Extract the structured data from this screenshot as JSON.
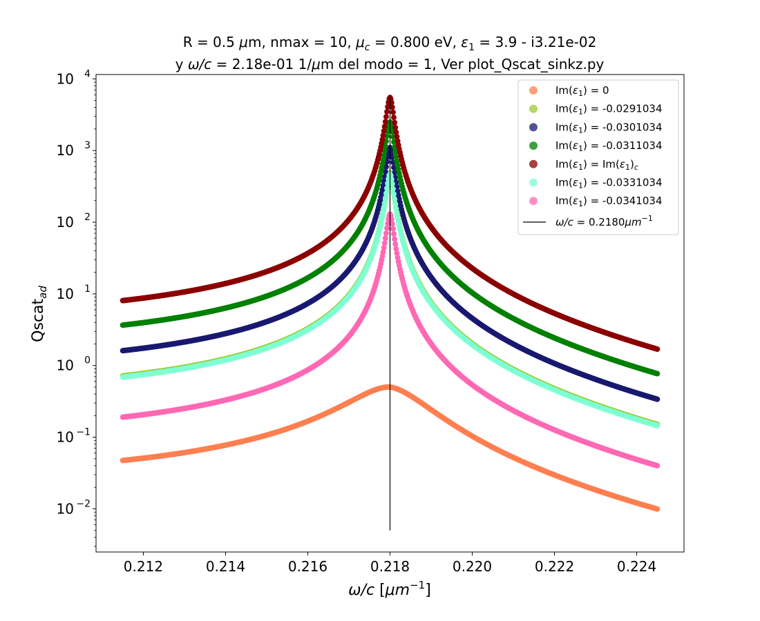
{
  "chart_data": {
    "type": "scatter",
    "title_line1_parts": [
      "R = 0.5 ",
      "μ",
      "m, nmax = 10, ",
      "μ",
      "c",
      " = 0.800 eV, ",
      "ε",
      "1",
      " = 3.9 - i3.21e-02"
    ],
    "title_line2_parts": [
      "y ",
      "ω/c",
      " = 2.18e-01 1/",
      "μ",
      "m del modo = 1, Ver plot_Qscat_sinkz.py"
    ],
    "xlabel_parts": [
      "ω/c",
      " [",
      "μm",
      "−1",
      "]"
    ],
    "ylabel_parts": [
      "Qscat",
      "ad"
    ],
    "xscale": "linear",
    "yscale": "log",
    "xlim": [
      0.21085,
      0.22515
    ],
    "ylim": [
      0.0025,
      11500
    ],
    "x_ticks": [
      0.212,
      0.214,
      0.216,
      0.218,
      0.22,
      0.222,
      0.224
    ],
    "x_tick_labels": [
      "0.212",
      "0.214",
      "0.216",
      "0.218",
      "0.220",
      "0.222",
      "0.224"
    ],
    "y_ticks": [
      0.01,
      0.1,
      1,
      10,
      100,
      1000,
      10000
    ],
    "y_tick_labels": [
      [
        "10",
        "−2"
      ],
      [
        "10",
        "−1"
      ],
      [
        "10",
        "0"
      ],
      [
        "10",
        "1"
      ],
      [
        "10",
        "2"
      ],
      [
        "10",
        "3"
      ],
      [
        "10",
        "4"
      ]
    ],
    "resonance_x": 0.218,
    "vline": {
      "x": 0.218,
      "ymin": 0.005,
      "ymax": 5500,
      "color": "#000000"
    },
    "legend_position": "upper right",
    "series": [
      {
        "name_parts": [
          "Im(",
          "ε",
          "1",
          ") = 0"
        ],
        "color": "#ff7f50",
        "model": {
          "x_range": [
            0.2115,
            0.2245
          ],
          "A": 0.5,
          "g": 0.00111,
          "m": 0.0001,
          "peak_exp": 1.75
        }
      },
      {
        "name_parts": [
          "Im(",
          "ε",
          "1",
          ") = -0.0291034"
        ],
        "color": "#9acd32",
        "model": {
          "x_range": [
            0.2115,
            0.2245
          ],
          "A": 490,
          "g": 0.0001,
          "m": 0.0001,
          "peak_exp": 1.75
        }
      },
      {
        "name_parts": [
          "Im(",
          "ε",
          "1",
          ") = -0.0301034"
        ],
        "color": "#191970",
        "model": {
          "x_range": [
            0.2115,
            0.2245
          ],
          "A": 1100,
          "g": 0.0001,
          "m": 0.0001,
          "peak_exp": 1.75
        }
      },
      {
        "name_parts": [
          "Im(",
          "ε",
          "1",
          ") = -0.0311034"
        ],
        "color": "#008000",
        "model": {
          "x_range": [
            0.2115,
            0.2245
          ],
          "A": 2500,
          "g": 0.0001,
          "m": 0.0001,
          "peak_exp": 1.75
        }
      },
      {
        "name_parts": [
          "Im(",
          "ε",
          "1",
          ") = Im(",
          "ε",
          "1",
          ")",
          "c"
        ],
        "color": "#8b0000",
        "model": {
          "x_range": [
            0.2115,
            0.2245
          ],
          "A": 5500,
          "g": 0.0001,
          "m": 0.0001,
          "peak_exp": 1.75
        }
      },
      {
        "name_parts": [
          "Im(",
          "ε",
          "1",
          ") = -0.0331034"
        ],
        "color": "#7fffd4",
        "model": {
          "x_range": [
            0.2115,
            0.2245
          ],
          "A": 470,
          "g": 0.0001,
          "m": 0.0001,
          "peak_exp": 1.75
        }
      },
      {
        "name_parts": [
          "Im(",
          "ε",
          "1",
          ") = -0.0341034"
        ],
        "color": "#ff69b4",
        "model": {
          "x_range": [
            0.2115,
            0.2245
          ],
          "A": 130,
          "g": 0.0001,
          "m": 0.0001,
          "peak_exp": 1.75
        }
      }
    ],
    "vline_legend_parts": [
      "ω/c",
      " = 0.2180",
      "μm",
      "−1"
    ]
  }
}
